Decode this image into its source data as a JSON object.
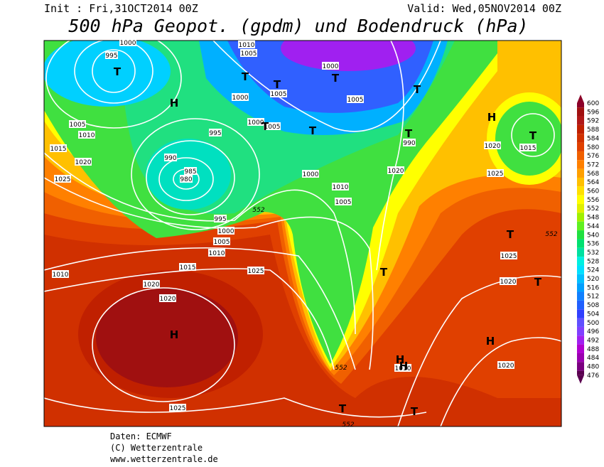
{
  "header": {
    "init": "Init : Fri,31OCT2014 00Z",
    "valid": "Valid: Wed,05NOV2014 00Z",
    "title": "500 hPa Geopot. (gpdm) und Bodendruck (hPa)"
  },
  "colorbar": {
    "levels": [
      600,
      596,
      592,
      588,
      584,
      580,
      576,
      572,
      568,
      564,
      560,
      556,
      552,
      548,
      544,
      540,
      536,
      532,
      528,
      524,
      520,
      516,
      512,
      508,
      504,
      500,
      496,
      492,
      488,
      484,
      480,
      476
    ],
    "colors": [
      "#8c0028",
      "#a01010",
      "#b01818",
      "#c02000",
      "#d03000",
      "#e04000",
      "#f06000",
      "#ff8000",
      "#ffa000",
      "#ffc000",
      "#ffe000",
      "#ffff00",
      "#e0f000",
      "#a0f000",
      "#60f020",
      "#20e040",
      "#00e070",
      "#00e0a0",
      "#00f0e0",
      "#00e0ff",
      "#00c0ff",
      "#00a0ff",
      "#1080ff",
      "#2060ff",
      "#3040ff",
      "#6050ff",
      "#8040ff",
      "#a020f0",
      "#b000d0",
      "#9a00b0",
      "#7a0080",
      "#5a0050"
    ]
  },
  "map": {
    "isobar_labels": [
      "995",
      "1000",
      "1005",
      "1010",
      "1010",
      "1005",
      "1000",
      "1005",
      "1005",
      "1000",
      "995",
      "990",
      "985",
      "980",
      "995",
      "1000",
      "1005",
      "1010",
      "1015",
      "1020",
      "1015",
      "1020",
      "1025",
      "1010",
      "1005",
      "1000",
      "1000",
      "1005",
      "1010",
      "1025",
      "1020",
      "1025",
      "1025",
      "1020",
      "1025",
      "1020",
      "1020",
      "1015",
      "990",
      "1020",
      "1010"
    ],
    "height_labels": [
      "552",
      "552",
      "552",
      "552"
    ],
    "centers": [
      "T",
      "H",
      "T",
      "T",
      "T",
      "T",
      "T",
      "T",
      "T",
      "H",
      "T",
      "H",
      "T",
      "T",
      "H",
      "H",
      "T",
      "T",
      "H",
      "T"
    ]
  },
  "footer": {
    "lines": [
      "Daten: ECMWF",
      "(C) Wetterzentrale",
      "www.wetterzentrale.de"
    ]
  }
}
